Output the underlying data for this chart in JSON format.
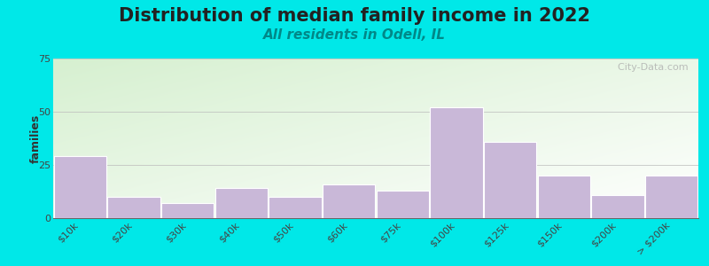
{
  "title": "Distribution of median family income in 2022",
  "subtitle": "All residents in Odell, IL",
  "ylabel": "families",
  "categories": [
    "$10k",
    "$20k",
    "$30k",
    "$40k",
    "$50k",
    "$60k",
    "$75k",
    "$100k",
    "$125k",
    "$150k",
    "$200k",
    "> $200k"
  ],
  "values": [
    29,
    10,
    7,
    14,
    10,
    16,
    13,
    52,
    36,
    20,
    11,
    20
  ],
  "bar_color": "#c9b8d8",
  "bar_edge_color": "#ffffff",
  "ylim": [
    0,
    75
  ],
  "yticks": [
    0,
    25,
    50,
    75
  ],
  "background_outer": "#00e8e8",
  "bg_gradient_top_left": "#d6f0d0",
  "bg_gradient_bottom_right": "#ffffff",
  "title_fontsize": 15,
  "subtitle_fontsize": 11,
  "subtitle_color": "#008888",
  "watermark": "  City-Data.com"
}
